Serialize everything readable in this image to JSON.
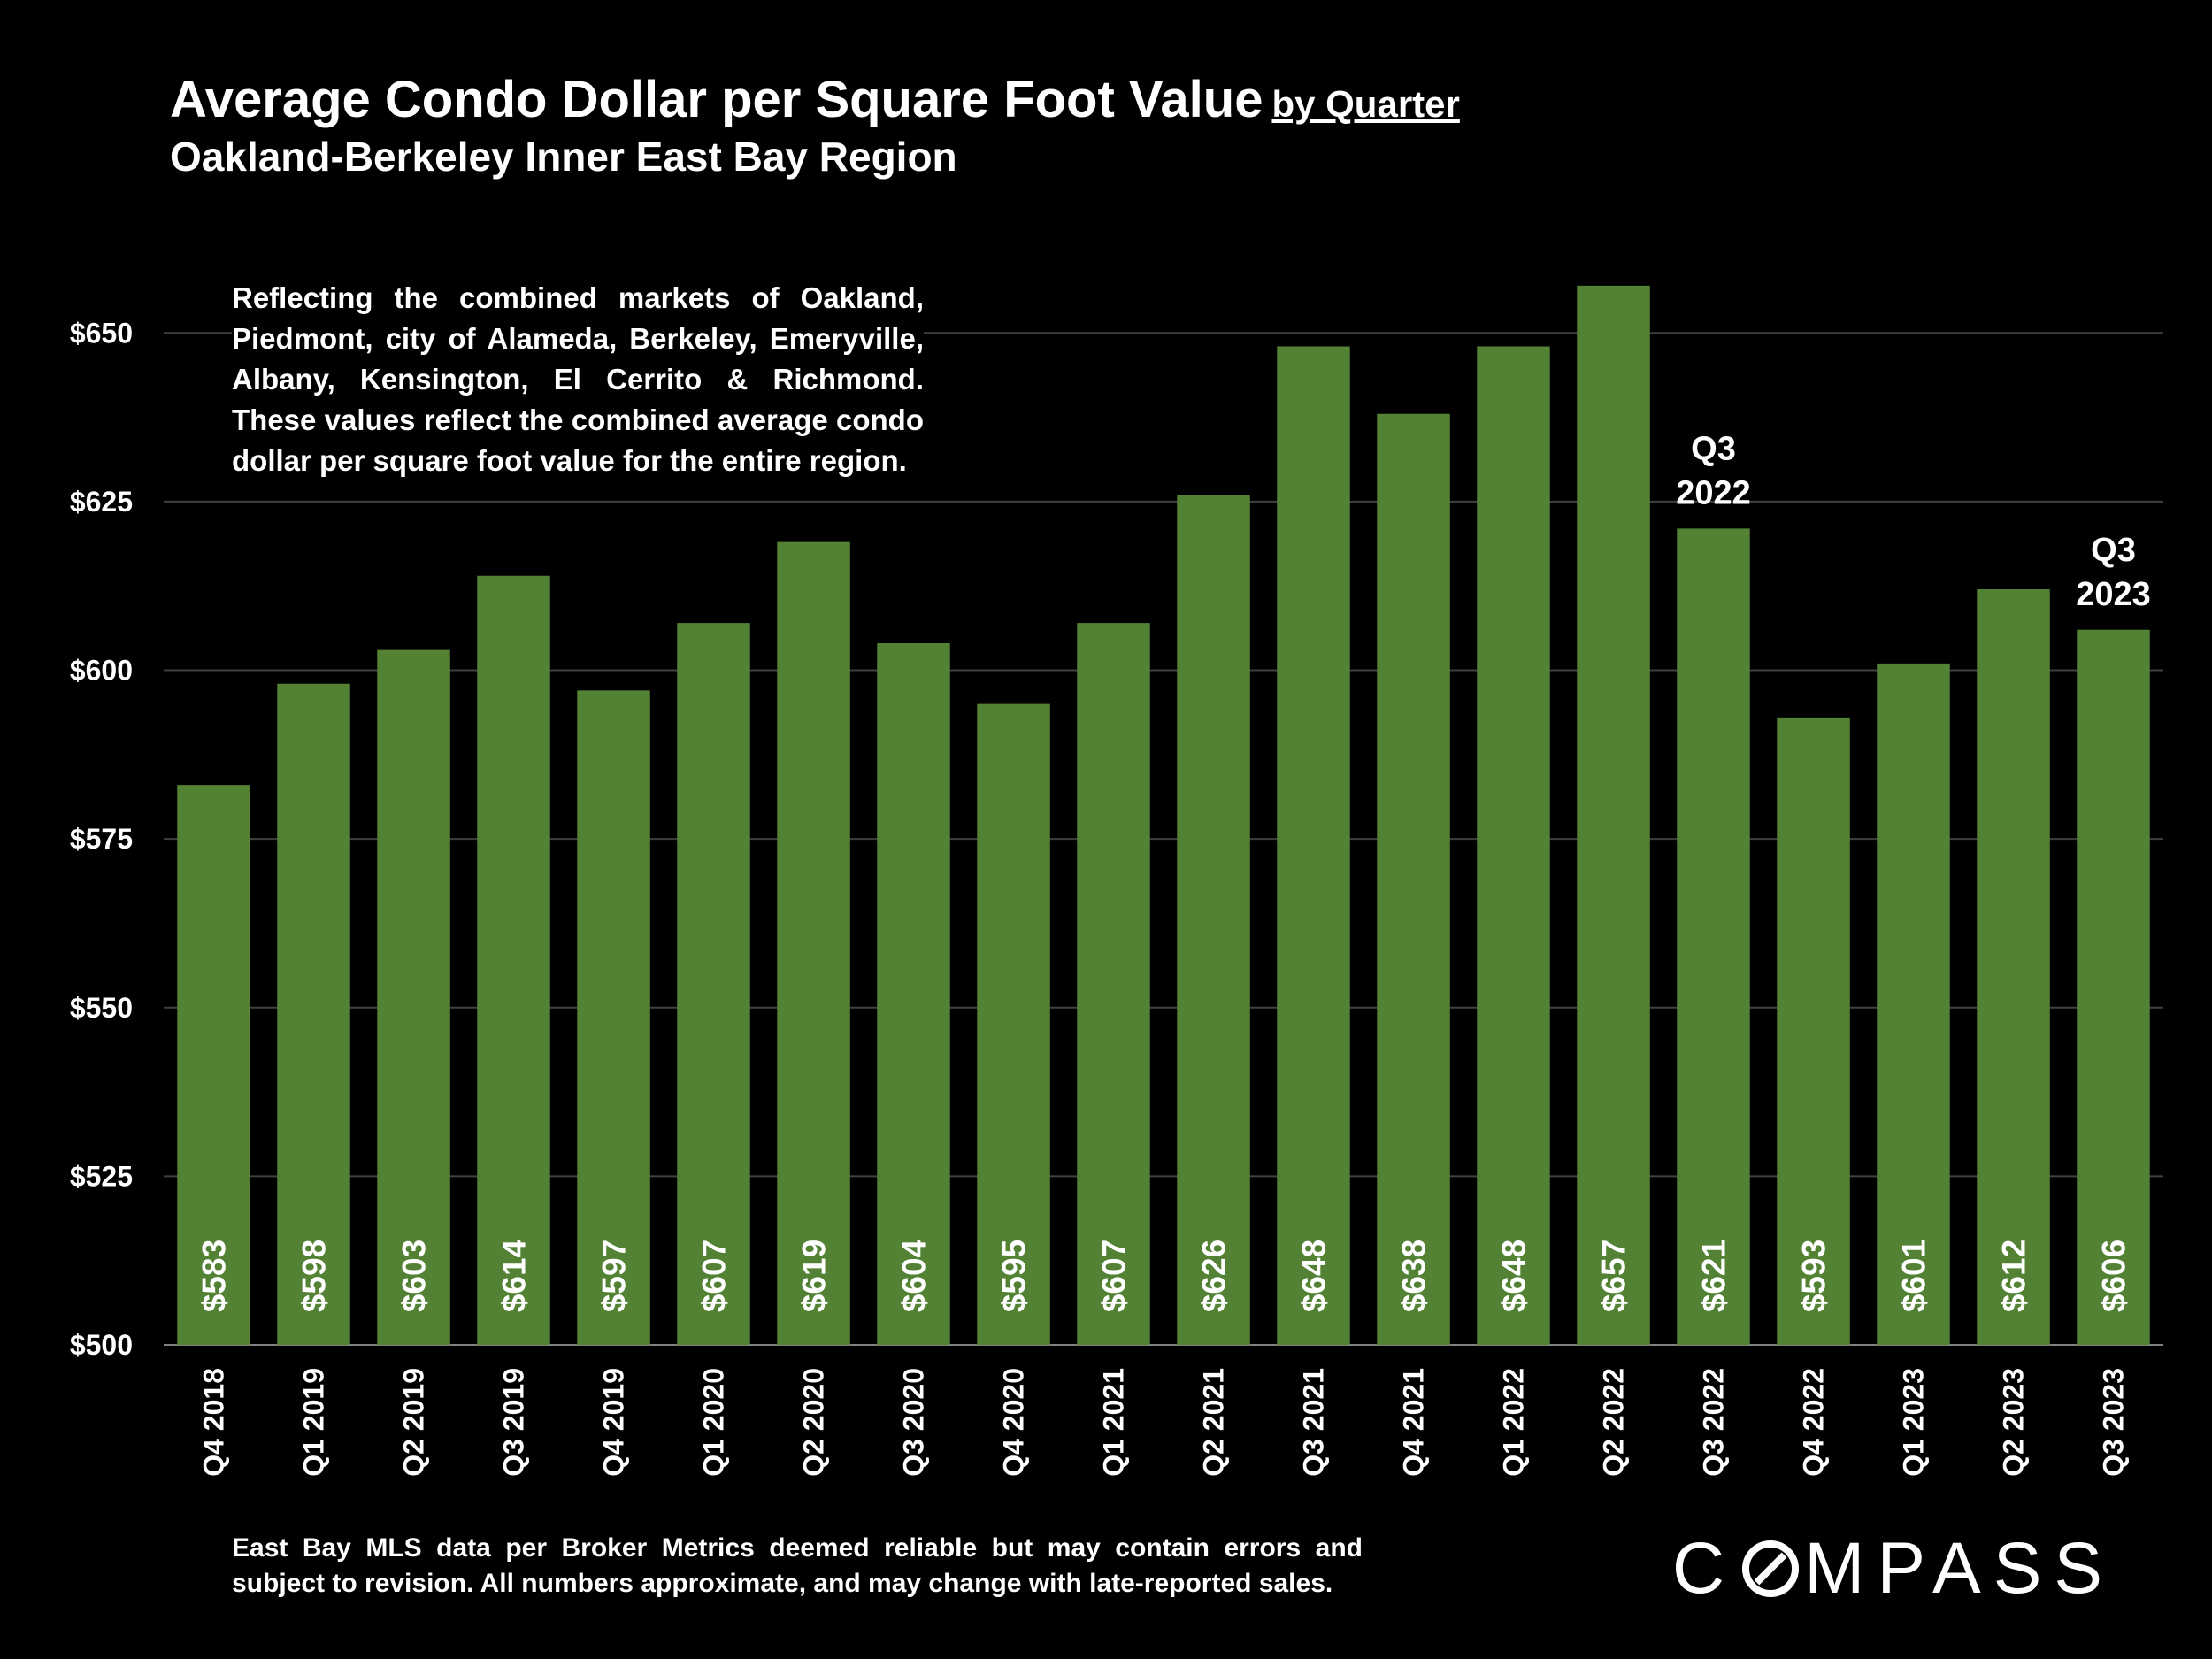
{
  "title": {
    "main": "Average Condo Dollar per Square Foot Value",
    "qualifier": "by Quarter"
  },
  "subtitle": "Oakland-Berkeley Inner East Bay Region",
  "note": "Reflecting the combined markets of Oakland, Piedmont, city of Alameda, Berkeley, Emeryville, Albany, Kensington, El Cerrito & Richmond. These values reflect the combined average condo dollar per square foot value for the entire region.",
  "source": "East Bay MLS data per Broker Metrics  deemed reliable but may contain errors and subject to revision. All numbers approximate, and may change with late-reported sales.",
  "logo": {
    "before": "C",
    "after": "MPASS"
  },
  "colors": {
    "background": "#000000",
    "bar": "#548235",
    "grid": "#404040",
    "text": "#ffffff"
  },
  "chart_data": {
    "type": "bar",
    "categories": [
      "Q4 2018",
      "Q1 2019",
      "Q2 2019",
      "Q3 2019",
      "Q4 2019",
      "Q1 2020",
      "Q2 2020",
      "Q3 2020",
      "Q4 2020",
      "Q1 2021",
      "Q2 2021",
      "Q3 2021",
      "Q4 2021",
      "Q1 2022",
      "Q2 2022",
      "Q3 2022",
      "Q4 2022",
      "Q1 2023",
      "Q2 2023",
      "Q3 2023"
    ],
    "values": [
      583,
      598,
      603,
      614,
      597,
      607,
      619,
      604,
      595,
      607,
      626,
      648,
      638,
      648,
      657,
      621,
      593,
      601,
      612,
      606
    ],
    "data_labels": [
      "$583",
      "$598",
      "$603",
      "$614",
      "$597",
      "$607",
      "$619",
      "$604",
      "$595",
      "$607",
      "$626",
      "$648",
      "$638",
      "$648",
      "$657",
      "$621",
      "$593",
      "$601",
      "$612",
      "$606"
    ],
    "ylim": [
      500,
      660
    ],
    "yticks": [
      500,
      525,
      550,
      575,
      600,
      625,
      650
    ],
    "ytick_labels": [
      "$500",
      "$525",
      "$550",
      "$575",
      "$600",
      "$625",
      "$650"
    ],
    "grid": true,
    "annotations": [
      {
        "index": 15,
        "lines": [
          "Q3",
          "2022"
        ]
      },
      {
        "index": 19,
        "lines": [
          "Q3",
          "2023"
        ]
      }
    ]
  }
}
